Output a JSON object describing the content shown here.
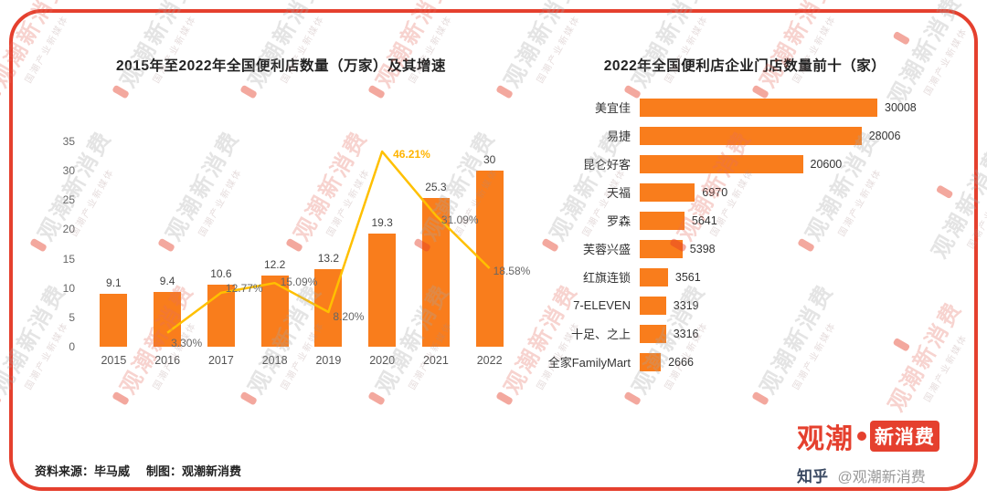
{
  "watermark": {
    "text": "观潮新消费",
    "subtext": "国潮产业新媒体"
  },
  "footer": {
    "source": "资料来源：毕马威",
    "credit": "制图：观潮新消费"
  },
  "brand": {
    "part1": "观潮",
    "part2": "新消费"
  },
  "zhihu": {
    "platform": "知乎",
    "handle": "@观潮新消费"
  },
  "chart_data": [
    {
      "type": "bar",
      "title": "2015年至2022年全国便利店数量（万家）及其增速",
      "categories": [
        "2015",
        "2016",
        "2017",
        "2018",
        "2019",
        "2020",
        "2021",
        "2022"
      ],
      "series": [
        {
          "name": "便利店数量（万家）",
          "type": "bar",
          "values": [
            9.1,
            9.4,
            10.6,
            12.2,
            13.2,
            19.3,
            25.3,
            30
          ]
        },
        {
          "name": "增速",
          "type": "line",
          "values": [
            null,
            3.3,
            12.77,
            15.09,
            8.2,
            46.21,
            31.09,
            18.58
          ],
          "labels": [
            null,
            "3.30%",
            "12.77%",
            "15.09%",
            "8.20%",
            "46.21%",
            "31.09%",
            "18.58%"
          ]
        }
      ],
      "ylim": [
        0,
        35
      ],
      "yticks": [
        0,
        5,
        10,
        15,
        20,
        25,
        30,
        35
      ],
      "bar_color": "#F97D1C",
      "line_color": "#FFC000",
      "highlight_label": "46.21%",
      "grid": false,
      "legend": "none"
    },
    {
      "type": "bar",
      "orientation": "horizontal",
      "title": "2022年全国便利店企业门店数量前十（家）",
      "categories": [
        "美宜佳",
        "易捷",
        "昆仑好客",
        "天福",
        "罗森",
        "芙蓉兴盛",
        "红旗连锁",
        "7-ELEVEN",
        "十足、之上",
        "全家FamilyMart"
      ],
      "values": [
        30008,
        28006,
        20600,
        6970,
        5641,
        5398,
        3561,
        3319,
        3316,
        2666
      ],
      "bar_color": "#F97D1C",
      "grid": false,
      "legend": "none"
    }
  ]
}
